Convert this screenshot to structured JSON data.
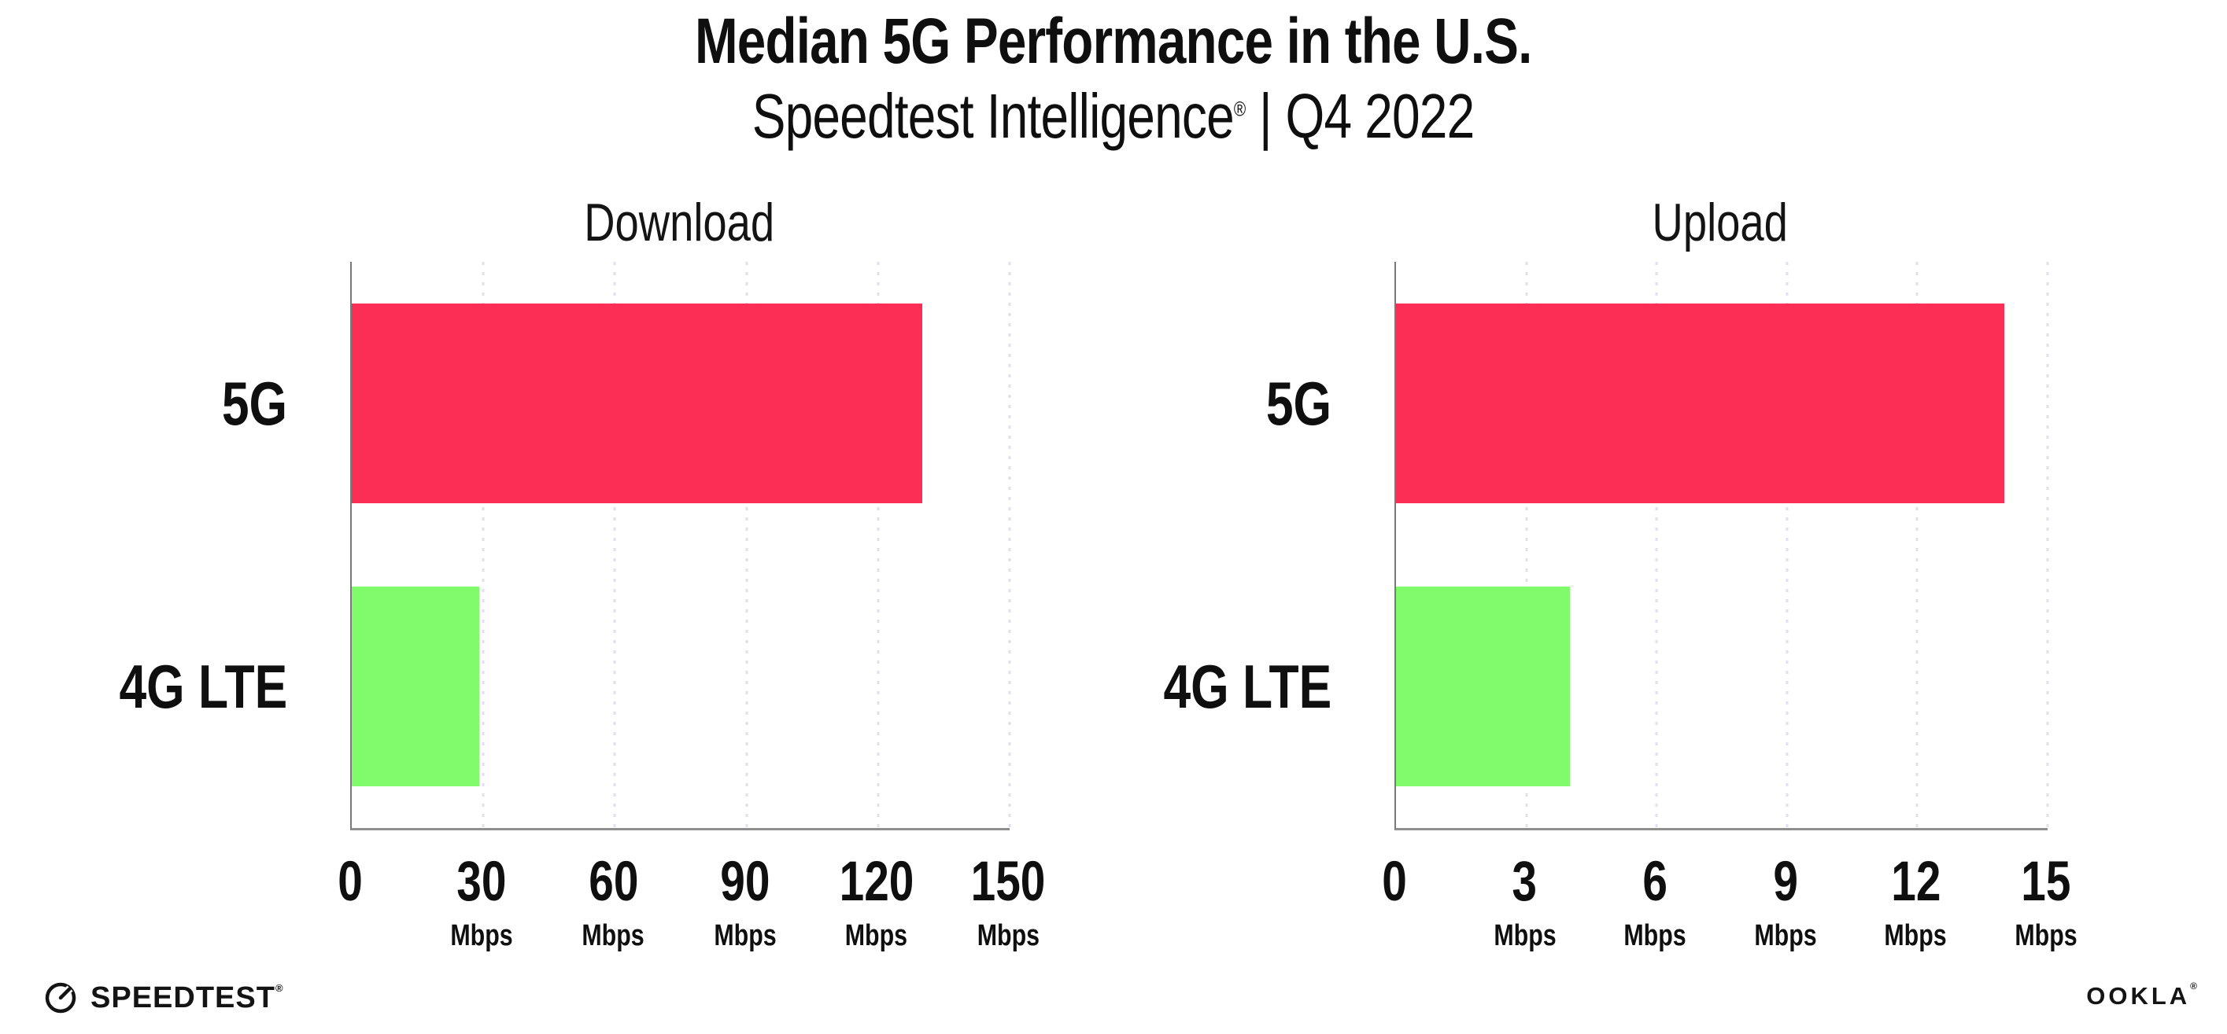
{
  "page": {
    "title": "Median 5G Performance in the U.S.",
    "subtitle_brand": "Speedtest Intelligence",
    "subtitle_reg": "®",
    "subtitle_sep": "|",
    "subtitle_period": "Q4 2022"
  },
  "chart_data": [
    {
      "type": "bar",
      "orientation": "horizontal",
      "title": "Download",
      "categories": [
        "5G",
        "4G LTE"
      ],
      "values": [
        130,
        29
      ],
      "unit": "Mbps",
      "xlim": [
        0,
        150
      ],
      "xticks": [
        0,
        30,
        60,
        90,
        120,
        150
      ],
      "bar_colors": [
        "#fd2e56",
        "#80fb6b"
      ],
      "grid": "vertical-dotted",
      "legend": "none",
      "xlabel": "",
      "ylabel": ""
    },
    {
      "type": "bar",
      "orientation": "horizontal",
      "title": "Upload",
      "categories": [
        "5G",
        "4G LTE"
      ],
      "values": [
        14,
        4
      ],
      "unit": "Mbps",
      "xlim": [
        0,
        15
      ],
      "xticks": [
        0,
        3,
        6,
        9,
        12,
        15
      ],
      "bar_colors": [
        "#fd2e56",
        "#80fb6b"
      ],
      "grid": "vertical-dotted",
      "legend": "none",
      "xlabel": "",
      "ylabel": ""
    }
  ],
  "footer": {
    "speedtest_icon": "speedtest-gauge-icon",
    "speedtest_label": "SPEEDTEST",
    "speedtest_mark": "®",
    "ookla_label": "OOKLA",
    "ookla_mark": "®"
  },
  "colors": {
    "bar_5g": "#fd2e56",
    "bar_4g_lte": "#80fb6b",
    "axis_line": "#8f8f8f",
    "grid_dot": "#dfe1ee",
    "text": "#0f0f0f"
  }
}
